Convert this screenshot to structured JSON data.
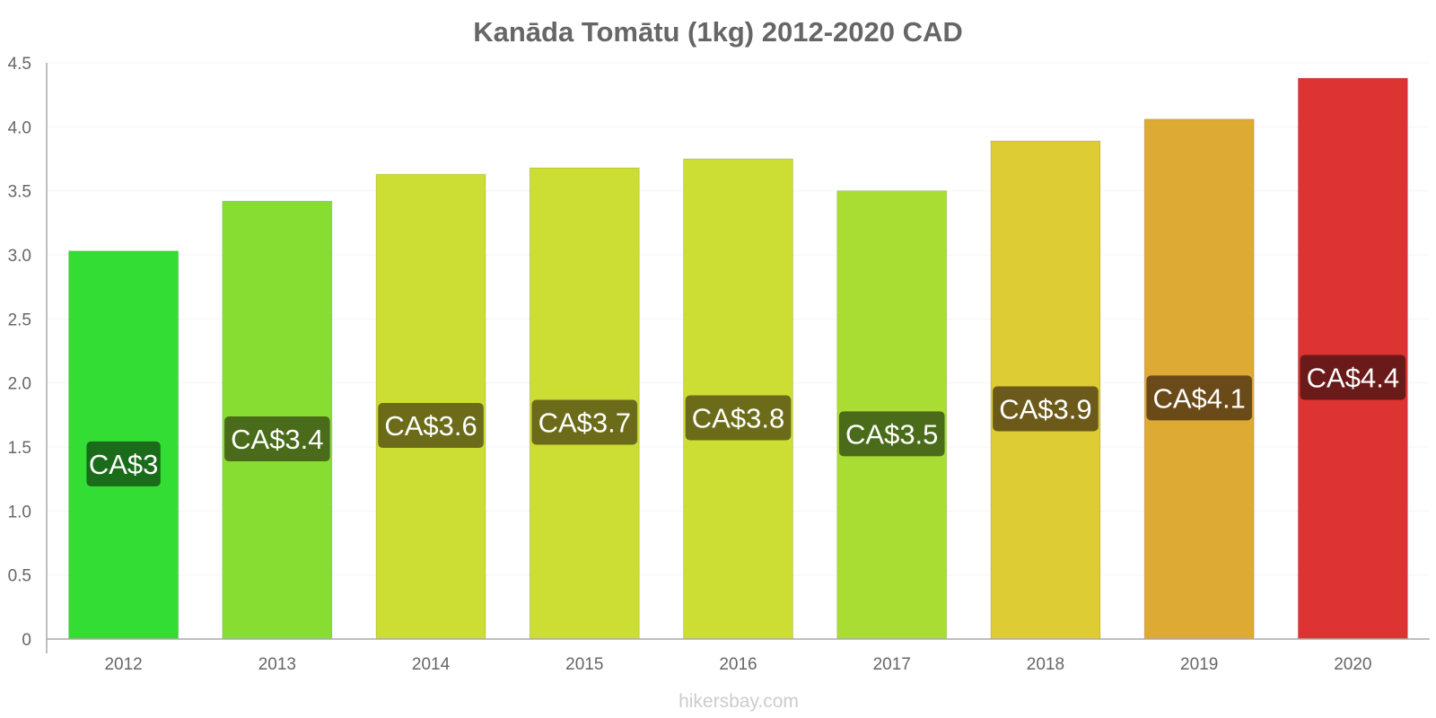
{
  "chart_data": {
    "type": "bar",
    "title": "Kanāda Tomātu (1kg) 2012-2020 CAD",
    "categories": [
      "2012",
      "2013",
      "2014",
      "2015",
      "2016",
      "2017",
      "2018",
      "2019",
      "2020"
    ],
    "values": [
      3.03,
      3.42,
      3.63,
      3.68,
      3.75,
      3.5,
      3.89,
      4.06,
      4.38
    ],
    "data_labels": [
      "CA$3",
      "CA$3.4",
      "CA$3.6",
      "CA$3.7",
      "CA$3.8",
      "CA$3.5",
      "CA$3.9",
      "CA$4.1",
      "CA$4.4"
    ],
    "bar_colors": [
      "#33dd33",
      "#88dd33",
      "#ccdd33",
      "#ccdd33",
      "#ccdd33",
      "#aadd33",
      "#ddcc33",
      "#ddaa33",
      "#dd3333"
    ],
    "label_colors": [
      "#1a6b1a",
      "#4a6b1a",
      "#6b6b1a",
      "#6b6b1a",
      "#6b6b1a",
      "#4a6b1a",
      "#6b5a1a",
      "#6b4a1a",
      "#6b1a1a"
    ],
    "ylim": [
      0,
      4.5
    ],
    "yticks": [
      "0",
      "0.5",
      "1.0",
      "1.5",
      "2.0",
      "2.5",
      "3.0",
      "3.5",
      "4.0",
      "4.5"
    ],
    "xlabel": "",
    "ylabel": "",
    "grid": true,
    "legend": "none"
  },
  "source": "hikersbay.com"
}
